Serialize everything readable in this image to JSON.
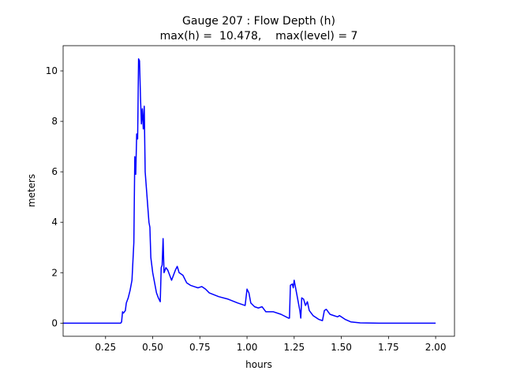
{
  "chart_data": {
    "type": "line",
    "title": "Gauge 207 : Flow Depth (h)",
    "subtitle": "max(h) =  10.478,    max(level) = 7",
    "x_label": "hours",
    "y_label": "meters",
    "xlim": [
      0.025,
      2.1
    ],
    "ylim": [
      -0.52,
      11.0
    ],
    "xticks": [
      0.25,
      {
        "value": 0.5,
        "label": "0.50"
      },
      0.75,
      {
        "value": 1.0,
        "label": "1.00"
      },
      1.25,
      {
        "value": 1.5,
        "label": "1.50"
      },
      1.75,
      {
        "value": 2.0,
        "label": "2.00"
      }
    ],
    "yticks": [
      0,
      2,
      4,
      6,
      8,
      10
    ],
    "grid": false,
    "x": [
      0.025,
      0.33,
      0.335,
      0.34,
      0.345,
      0.355,
      0.36,
      0.37,
      0.38,
      0.39,
      0.4,
      0.405,
      0.41,
      0.415,
      0.42,
      0.425,
      0.43,
      0.435,
      0.44,
      0.445,
      0.45,
      0.455,
      0.46,
      0.47,
      0.48,
      0.485,
      0.49,
      0.5,
      0.51,
      0.52,
      0.53,
      0.54,
      0.545,
      0.55,
      0.555,
      0.56,
      0.57,
      0.58,
      0.6,
      0.62,
      0.63,
      0.64,
      0.66,
      0.68,
      0.7,
      0.72,
      0.74,
      0.76,
      0.78,
      0.8,
      0.85,
      0.9,
      0.95,
      0.99,
      1.0,
      1.01,
      1.02,
      1.04,
      1.06,
      1.08,
      1.1,
      1.14,
      1.18,
      1.22,
      1.225,
      1.23,
      1.24,
      1.245,
      1.25,
      1.26,
      1.28,
      1.285,
      1.29,
      1.3,
      1.31,
      1.32,
      1.33,
      1.35,
      1.38,
      1.4,
      1.41,
      1.42,
      1.44,
      1.46,
      1.48,
      1.49,
      1.52,
      1.55,
      1.6,
      1.7,
      2.0
    ],
    "series": [
      {
        "name": "h",
        "color": "#0000ff",
        "values": [
          0,
          0,
          0.05,
          0.45,
          0.4,
          0.5,
          0.8,
          1.0,
          1.3,
          1.7,
          3.2,
          6.6,
          5.9,
          7.5,
          7.3,
          10.478,
          10.4,
          9.0,
          7.9,
          8.5,
          7.7,
          8.6,
          6.0,
          5.0,
          4.0,
          3.8,
          2.6,
          2.0,
          1.6,
          1.2,
          1.0,
          0.85,
          2.2,
          2.3,
          3.35,
          2.0,
          2.2,
          2.1,
          1.7,
          2.1,
          2.25,
          2.0,
          1.9,
          1.6,
          1.5,
          1.45,
          1.4,
          1.45,
          1.35,
          1.2,
          1.05,
          0.95,
          0.8,
          0.7,
          1.35,
          1.2,
          0.8,
          0.65,
          0.6,
          0.65,
          0.45,
          0.45,
          0.35,
          0.2,
          0.2,
          1.5,
          1.55,
          1.4,
          1.7,
          1.3,
          0.5,
          0.2,
          1.0,
          0.95,
          0.7,
          0.85,
          0.5,
          0.3,
          0.15,
          0.1,
          0.5,
          0.55,
          0.35,
          0.3,
          0.25,
          0.3,
          0.15,
          0.05,
          0.01,
          0,
          0
        ]
      }
    ]
  }
}
